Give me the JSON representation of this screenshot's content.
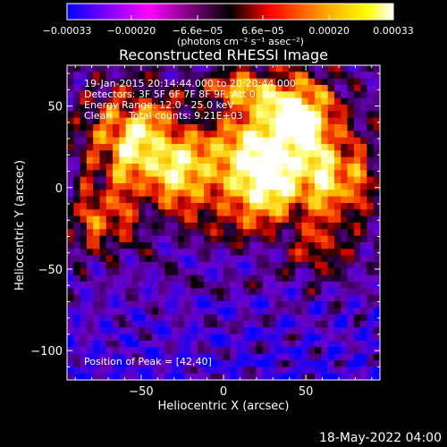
{
  "chart_data": {
    "type": "heatmap",
    "title": "Reconstructed RHESSI Image",
    "xlabel": "Heliocentric X (arcsec)",
    "ylabel": "Heliocentric Y (arcsec)",
    "xlim": [
      -95,
      95
    ],
    "ylim": [
      -118,
      75
    ],
    "x_ticks": [
      -50,
      0,
      50
    ],
    "x_tick_labels": [
      "−50",
      "0",
      "50"
    ],
    "y_ticks": [
      -100,
      -50,
      0,
      50
    ],
    "y_tick_labels": [
      "−100",
      "−50",
      "0",
      "50"
    ],
    "colorbar": {
      "range": [
        -0.00033,
        0.00033
      ],
      "ticks": [
        -0.00033,
        -0.0002,
        -6.6e-05,
        6.6e-05,
        0.0002,
        0.00033
      ],
      "tick_labels": [
        "−0.00033",
        "−0.00020",
        "−6.6e−05",
        "6.6e−05",
        "0.00020",
        "0.00033"
      ],
      "unit_label": "(photons cm⁻² s⁻¹ asec⁻²)",
      "colors": [
        "#0000ff",
        "#ff00ff",
        "#000000",
        "#ff0000",
        "#ffff00",
        "#ffffff"
      ]
    },
    "annotations": {
      "time_range": "19-Jan-2015 20:14:44.000 to 20:20:44.000",
      "detectors": "Detectors: 3F 5F 6F 7F 8F 9F, Att 0",
      "energy": "Energy Range: 12.0 - 25.0 keV",
      "clean": "Clean",
      "total_counts": "Total counts: 9.21E+03",
      "peak": "Position of Peak = [42,40]"
    },
    "peak": [
      42,
      40
    ],
    "grid": false
  },
  "footer": {
    "timestamp": "18-May-2022 04:00"
  }
}
